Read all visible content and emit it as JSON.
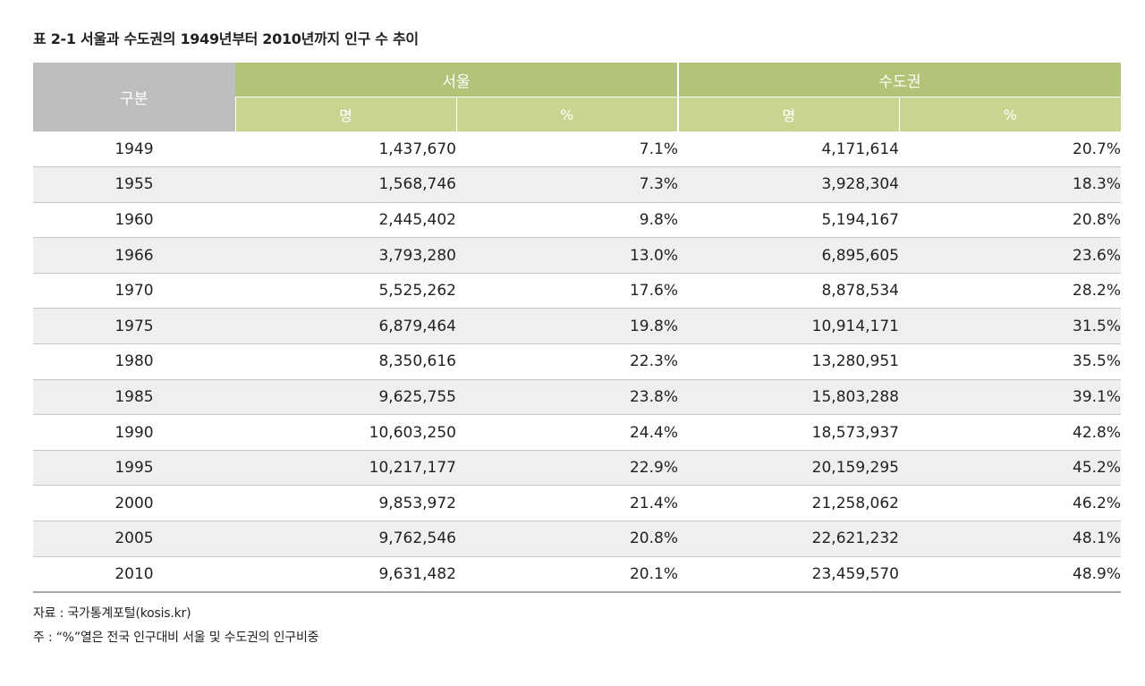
{
  "title": "표 2-1 서울과 수도권의 1949년부터 2010년까지 인구 수 추이",
  "table": {
    "header": {
      "label": "구분",
      "group_seoul": "서울",
      "group_capital": "수도권",
      "sub_seoul_count": "명",
      "sub_seoul_pct": "%",
      "sub_capital_count": "명",
      "sub_capital_pct": "%"
    },
    "rows": [
      {
        "year": "1949",
        "seoul_count": "1,437,670",
        "seoul_pct": "7.1%",
        "capital_count": "4,171,614",
        "capital_pct": "20.7%"
      },
      {
        "year": "1955",
        "seoul_count": "1,568,746",
        "seoul_pct": "7.3%",
        "capital_count": "3,928,304",
        "capital_pct": "18.3%"
      },
      {
        "year": "1960",
        "seoul_count": "2,445,402",
        "seoul_pct": "9.8%",
        "capital_count": "5,194,167",
        "capital_pct": "20.8%"
      },
      {
        "year": "1966",
        "seoul_count": "3,793,280",
        "seoul_pct": "13.0%",
        "capital_count": "6,895,605",
        "capital_pct": "23.6%"
      },
      {
        "year": "1970",
        "seoul_count": "5,525,262",
        "seoul_pct": "17.6%",
        "capital_count": "8,878,534",
        "capital_pct": "28.2%"
      },
      {
        "year": "1975",
        "seoul_count": "6,879,464",
        "seoul_pct": "19.8%",
        "capital_count": "10,914,171",
        "capital_pct": "31.5%"
      },
      {
        "year": "1980",
        "seoul_count": "8,350,616",
        "seoul_pct": "22.3%",
        "capital_count": "13,280,951",
        "capital_pct": "35.5%"
      },
      {
        "year": "1985",
        "seoul_count": "9,625,755",
        "seoul_pct": "23.8%",
        "capital_count": "15,803,288",
        "capital_pct": "39.1%"
      },
      {
        "year": "1990",
        "seoul_count": "10,603,250",
        "seoul_pct": "24.4%",
        "capital_count": "18,573,937",
        "capital_pct": "42.8%"
      },
      {
        "year": "1995",
        "seoul_count": "10,217,177",
        "seoul_pct": "22.9%",
        "capital_count": "20,159,295",
        "capital_pct": "45.2%"
      },
      {
        "year": "2000",
        "seoul_count": "9,853,972",
        "seoul_pct": "21.4%",
        "capital_count": "21,258,062",
        "capital_pct": "46.2%"
      },
      {
        "year": "2005",
        "seoul_count": "9,762,546",
        "seoul_pct": "20.8%",
        "capital_count": "22,621,232",
        "capital_pct": "48.1%"
      },
      {
        "year": "2010",
        "seoul_count": "9,631,482",
        "seoul_pct": "20.1%",
        "capital_count": "23,459,570",
        "capital_pct": "48.9%"
      }
    ]
  },
  "notes": {
    "source": "자료 : 국가통계포털(kosis.kr)",
    "note": "주 : “%”열은 전국 인구대비 서울 및 수도권의 인구비중"
  },
  "colors": {
    "header_gray": "#bcbec0",
    "header_green": "#b1c478",
    "header_green_light": "#c7d591",
    "row_shade": "#efeff0"
  }
}
